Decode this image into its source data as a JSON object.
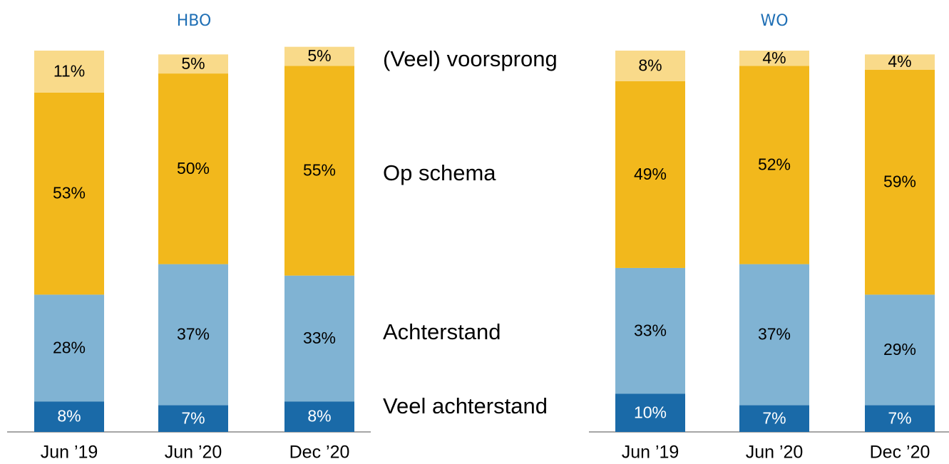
{
  "chart_data": [
    {
      "type": "bar",
      "stacked": true,
      "title": "HBO",
      "categories": [
        "Jun ’19",
        "Jun ’20",
        "Dec ’20"
      ],
      "ylim": [
        0,
        100
      ],
      "series": [
        {
          "name": "Veel achterstand",
          "color": "#1a6aa8",
          "label_color": "#ffffff",
          "values": [
            8,
            7,
            8
          ],
          "value_labels": [
            "8%",
            "7%",
            "8%"
          ]
        },
        {
          "name": "Achterstand",
          "color": "#80b3d3",
          "label_color": "#000000",
          "values": [
            28,
            37,
            33
          ],
          "value_labels": [
            "28%",
            "37%",
            "33%"
          ]
        },
        {
          "name": "Op schema",
          "color": "#f2b81c",
          "label_color": "#000000",
          "values": [
            53,
            50,
            55
          ],
          "value_labels": [
            "53%",
            "50%",
            "55%"
          ]
        },
        {
          "name": "(Veel) voorsprong",
          "color": "#f9da8a",
          "label_color": "#000000",
          "values": [
            11,
            5,
            5
          ],
          "value_labels": [
            "11%",
            "5%",
            "5%"
          ]
        }
      ]
    },
    {
      "type": "bar",
      "stacked": true,
      "title": "WO",
      "categories": [
        "Jun ’19",
        "Jun ’20",
        "Dec ’20"
      ],
      "ylim": [
        0,
        100
      ],
      "series": [
        {
          "color": "#1a6aa8",
          "label_color": "#ffffff",
          "values": [
            10,
            7,
            7
          ],
          "value_labels": [
            "10%",
            "7%",
            "7%"
          ]
        },
        {
          "color": "#80b3d3",
          "label_color": "#000000",
          "values": [
            33,
            37,
            29
          ],
          "value_labels": [
            "33%",
            "37%",
            "29%"
          ]
        },
        {
          "color": "#f2b81c",
          "label_color": "#000000",
          "values": [
            49,
            52,
            59
          ],
          "value_labels": [
            "49%",
            "52%",
            "59%"
          ]
        },
        {
          "color": "#f9da8a",
          "label_color": "#000000",
          "values": [
            8,
            4,
            4
          ],
          "value_labels": [
            "8%",
            "4%",
            "4%"
          ]
        }
      ]
    }
  ]
}
